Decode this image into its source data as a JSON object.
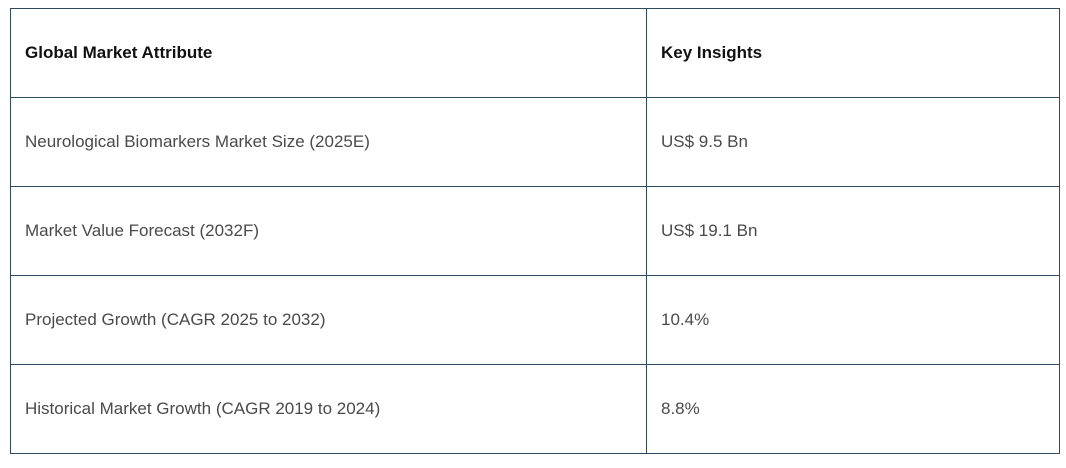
{
  "table": {
    "headers": [
      "Global Market Attribute",
      "Key Insights"
    ],
    "rows": [
      [
        "Neurological Biomarkers Market Size (2025E)",
        "US$ 9.5 Bn"
      ],
      [
        "Market Value Forecast (2032F)",
        "US$ 19.1 Bn"
      ],
      [
        "Projected Growth (CAGR 2025 to 2032)",
        "10.4%"
      ],
      [
        "Historical Market Growth (CAGR 2019 to 2024)",
        "8.8%"
      ]
    ]
  }
}
